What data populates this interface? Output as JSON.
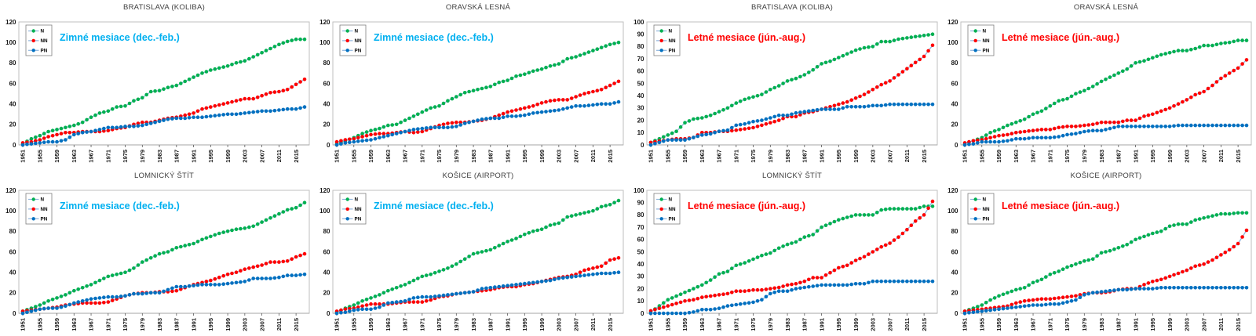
{
  "window": {
    "background": "#ffffff"
  },
  "colors": {
    "series": {
      "N": "#00B050",
      "NN": "#FF0000",
      "PN": "#0070C0"
    },
    "series_connector_line": "#8FB4DC",
    "plot_border": "#BFBFBF",
    "axis_line": "#A6A6A6",
    "tick_mark": "#595959",
    "axis_text": "#1A1A1A",
    "legend_border": "#7F7F7F",
    "legend_text": "#000000",
    "title_text": "#3F3F3F",
    "winter_annotation": "#00B0F0",
    "summer_annotation": "#FF0000"
  },
  "legend": {
    "labels": [
      "N",
      "NN",
      "PN"
    ],
    "position": "top-left"
  },
  "axes": {
    "x_start": 1951,
    "x_end": 2017,
    "x_value_step": 2,
    "x_tick_labels": [
      "1951",
      "1955",
      "1959",
      "1963",
      "1967",
      "1971",
      "1975",
      "1979",
      "1983",
      "1987",
      "1991",
      "1995",
      "1999",
      "2003",
      "2007",
      "2011",
      "2015"
    ],
    "grid": false
  },
  "chart_data": [
    {
      "type": "line",
      "title": "BRATISLAVA (KOLIBA)",
      "annotation": {
        "text": "Zimné mesiace (dec.-feb.)",
        "color": "#00B0F0"
      },
      "ylim": [
        0,
        120
      ],
      "y_tick_step": 20,
      "series": [
        {
          "name": "N",
          "values": [
            1,
            6,
            9,
            13,
            15,
            17,
            19,
            22,
            27,
            31,
            33,
            37,
            38,
            43,
            46,
            52,
            53,
            56,
            58,
            62,
            66,
            70,
            73,
            75,
            77,
            80,
            82,
            86,
            90,
            94,
            98,
            101,
            103,
            103
          ]
        },
        {
          "name": "NN",
          "values": [
            2,
            3,
            5,
            8,
            10,
            12,
            12,
            13,
            13,
            13,
            14,
            16,
            17,
            20,
            22,
            22,
            24,
            26,
            27,
            29,
            31,
            35,
            37,
            39,
            41,
            43,
            45,
            45,
            48,
            51,
            52,
            54,
            59,
            64
          ]
        },
        {
          "name": "PN",
          "values": [
            0,
            1,
            2,
            3,
            3,
            5,
            10,
            12,
            13,
            15,
            17,
            17,
            18,
            18,
            19,
            21,
            23,
            25,
            26,
            26,
            27,
            27,
            28,
            29,
            30,
            30,
            31,
            32,
            33,
            33,
            34,
            35,
            35,
            37
          ]
        }
      ]
    },
    {
      "type": "line",
      "title": "ORAVSKÁ LESNÁ",
      "annotation": {
        "text": "Zimné mesiace (dec.-feb.)",
        "color": "#00B0F0"
      },
      "ylim": [
        0,
        120
      ],
      "y_tick_step": 20,
      "series": [
        {
          "name": "N",
          "values": [
            1,
            4,
            7,
            11,
            14,
            16,
            19,
            20,
            24,
            28,
            32,
            36,
            38,
            43,
            47,
            51,
            53,
            55,
            57,
            61,
            63,
            67,
            69,
            72,
            74,
            77,
            79,
            84,
            86,
            89,
            92,
            95,
            98,
            100
          ]
        },
        {
          "name": "NN",
          "values": [
            3,
            5,
            6,
            8,
            10,
            11,
            11,
            12,
            13,
            12,
            13,
            16,
            19,
            21,
            22,
            22,
            23,
            24,
            26,
            29,
            32,
            34,
            36,
            38,
            41,
            43,
            44,
            44,
            47,
            50,
            52,
            54,
            58,
            62
          ]
        },
        {
          "name": "PN",
          "values": [
            0,
            2,
            3,
            4,
            5,
            7,
            9,
            11,
            13,
            15,
            16,
            17,
            17,
            17,
            18,
            21,
            23,
            25,
            26,
            26,
            28,
            28,
            29,
            31,
            32,
            33,
            34,
            36,
            38,
            38,
            39,
            40,
            40,
            42
          ]
        }
      ]
    },
    {
      "type": "line",
      "title": "BRATISLAVA (KOLIBA)",
      "annotation": {
        "text": "Letné mesiace (jún.-aug.)",
        "color": "#FF0000"
      },
      "ylim": [
        0,
        100
      ],
      "y_tick_step": 10,
      "series": [
        {
          "name": "N",
          "values": [
            2,
            5,
            8,
            11,
            18,
            21,
            22,
            24,
            27,
            30,
            34,
            37,
            39,
            41,
            45,
            48,
            52,
            54,
            57,
            61,
            66,
            68,
            71,
            74,
            77,
            79,
            80,
            84,
            84,
            86,
            87,
            88,
            89,
            90
          ]
        },
        {
          "name": "NN",
          "values": [
            2,
            3,
            4,
            5,
            5,
            6,
            10,
            10,
            11,
            11,
            12,
            13,
            14,
            16,
            18,
            20,
            23,
            23,
            26,
            27,
            29,
            31,
            33,
            35,
            38,
            41,
            45,
            49,
            52,
            57,
            62,
            67,
            72,
            81
          ]
        },
        {
          "name": "PN",
          "values": [
            0,
            2,
            4,
            4,
            4,
            6,
            8,
            9,
            11,
            12,
            16,
            17,
            19,
            20,
            22,
            24,
            24,
            26,
            27,
            28,
            29,
            29,
            29,
            31,
            31,
            31,
            32,
            32,
            33,
            33,
            33,
            33,
            33,
            33
          ]
        }
      ]
    },
    {
      "type": "line",
      "title": "ORAVSKÁ LESNÁ",
      "annotation": {
        "text": "Letné mesiace (jún.-aug.)",
        "color": "#FF0000"
      },
      "ylim": [
        0,
        120
      ],
      "y_tick_step": 20,
      "series": [
        {
          "name": "N",
          "values": [
            1,
            4,
            7,
            12,
            15,
            19,
            22,
            25,
            30,
            33,
            38,
            43,
            45,
            50,
            53,
            57,
            62,
            66,
            70,
            74,
            80,
            82,
            85,
            88,
            90,
            92,
            92,
            94,
            97,
            97,
            99,
            100,
            102,
            102
          ]
        },
        {
          "name": "NN",
          "values": [
            2,
            4,
            5,
            7,
            9,
            10,
            12,
            13,
            14,
            15,
            15,
            17,
            18,
            18,
            19,
            20,
            22,
            22,
            22,
            24,
            24,
            28,
            30,
            33,
            36,
            40,
            44,
            49,
            52,
            58,
            65,
            70,
            75,
            83
          ]
        },
        {
          "name": "PN",
          "values": [
            0,
            1,
            3,
            3,
            3,
            4,
            6,
            6,
            7,
            7,
            7,
            8,
            10,
            11,
            13,
            14,
            14,
            16,
            18,
            18,
            18,
            18,
            18,
            18,
            18,
            19,
            19,
            19,
            19,
            19,
            19,
            19,
            19,
            19
          ]
        }
      ]
    },
    {
      "type": "line",
      "title": "LOMNICKÝ ŠTÍT",
      "annotation": {
        "text": "Zimné mesiace (dec.-feb.)",
        "color": "#00B0F0"
      },
      "ylim": [
        0,
        120
      ],
      "y_tick_step": 20,
      "series": [
        {
          "name": "N",
          "values": [
            2,
            5,
            8,
            12,
            15,
            18,
            22,
            25,
            28,
            32,
            36,
            38,
            40,
            44,
            50,
            54,
            58,
            60,
            64,
            66,
            68,
            72,
            75,
            78,
            80,
            82,
            83,
            85,
            89,
            93,
            97,
            101,
            103,
            108
          ]
        },
        {
          "name": "NN",
          "values": [
            2,
            3,
            4,
            5,
            6,
            8,
            9,
            10,
            10,
            10,
            11,
            14,
            17,
            19,
            20,
            20,
            21,
            21,
            22,
            25,
            28,
            30,
            32,
            35,
            38,
            40,
            43,
            45,
            47,
            50,
            50,
            51,
            55,
            58
          ]
        },
        {
          "name": "PN",
          "values": [
            0,
            2,
            4,
            5,
            5,
            7,
            10,
            12,
            14,
            15,
            16,
            16,
            17,
            19,
            19,
            20,
            20,
            23,
            26,
            26,
            27,
            28,
            28,
            28,
            29,
            30,
            31,
            34,
            34,
            34,
            35,
            37,
            37,
            38
          ]
        }
      ]
    },
    {
      "type": "line",
      "title": "KOŠICE (AIRPORT)",
      "annotation": {
        "text": "Zimné mesiace (dec.-feb.)",
        "color": "#00B0F0"
      },
      "ylim": [
        0,
        120
      ],
      "y_tick_step": 20,
      "series": [
        {
          "name": "N",
          "values": [
            1,
            5,
            8,
            12,
            15,
            18,
            22,
            25,
            28,
            32,
            36,
            38,
            41,
            44,
            48,
            53,
            58,
            60,
            62,
            66,
            70,
            73,
            77,
            80,
            82,
            86,
            88,
            94,
            96,
            98,
            100,
            104,
            106,
            110
          ]
        },
        {
          "name": "NN",
          "values": [
            2,
            4,
            5,
            7,
            9,
            9,
            9,
            10,
            11,
            11,
            11,
            13,
            16,
            17,
            19,
            20,
            21,
            22,
            23,
            25,
            26,
            26,
            28,
            29,
            31,
            33,
            35,
            36,
            38,
            42,
            44,
            46,
            52,
            54
          ]
        },
        {
          "name": "PN",
          "values": [
            0,
            1,
            3,
            4,
            4,
            6,
            10,
            11,
            12,
            15,
            16,
            16,
            17,
            18,
            19,
            20,
            21,
            24,
            25,
            26,
            27,
            28,
            29,
            30,
            31,
            32,
            34,
            35,
            36,
            37,
            38,
            39,
            39,
            40
          ]
        }
      ]
    },
    {
      "type": "line",
      "title": "LOMNICKÝ ŠTÍT",
      "annotation": {
        "text": "Letné mesiace (jún.-aug.)",
        "color": "#FF0000"
      },
      "ylim": [
        0,
        100
      ],
      "y_tick_step": 10,
      "series": [
        {
          "name": "N",
          "values": [
            1,
            6,
            11,
            14,
            17,
            20,
            23,
            27,
            32,
            34,
            39,
            41,
            44,
            47,
            49,
            53,
            56,
            58,
            62,
            64,
            70,
            73,
            76,
            78,
            80,
            80,
            80,
            84,
            85,
            85,
            85,
            85,
            87,
            87
          ]
        },
        {
          "name": "NN",
          "values": [
            2,
            4,
            6,
            8,
            10,
            11,
            13,
            14,
            15,
            16,
            18,
            18,
            19,
            19,
            20,
            21,
            23,
            24,
            26,
            29,
            29,
            33,
            37,
            39,
            43,
            46,
            50,
            54,
            57,
            62,
            68,
            75,
            80,
            91
          ]
        },
        {
          "name": "PN",
          "values": [
            0,
            0,
            0,
            0,
            0,
            1,
            3,
            3,
            4,
            6,
            7,
            8,
            9,
            11,
            16,
            18,
            18,
            20,
            21,
            22,
            23,
            23,
            23,
            23,
            24,
            24,
            26,
            26,
            26,
            26,
            26,
            26,
            26,
            26
          ]
        }
      ]
    },
    {
      "type": "line",
      "title": "KOŠICE (AIRPORT)",
      "annotation": {
        "text": "Letné mesiace (jún.-aug.)",
        "color": "#FF0000"
      },
      "ylim": [
        0,
        120
      ],
      "y_tick_step": 20,
      "series": [
        {
          "name": "N",
          "values": [
            2,
            5,
            8,
            13,
            17,
            20,
            23,
            25,
            30,
            33,
            38,
            41,
            45,
            48,
            51,
            53,
            59,
            61,
            64,
            67,
            72,
            75,
            78,
            80,
            85,
            87,
            87,
            91,
            93,
            95,
            97,
            97,
            98,
            98
          ]
        },
        {
          "name": "NN",
          "values": [
            2,
            3,
            4,
            5,
            6,
            7,
            10,
            12,
            13,
            14,
            14,
            15,
            16,
            17,
            19,
            20,
            20,
            21,
            23,
            24,
            24,
            28,
            31,
            33,
            36,
            39,
            42,
            46,
            48,
            52,
            57,
            62,
            68,
            81
          ]
        },
        {
          "name": "PN",
          "values": [
            0,
            1,
            2,
            3,
            4,
            5,
            6,
            7,
            8,
            8,
            9,
            9,
            11,
            13,
            18,
            20,
            21,
            22,
            23,
            23,
            24,
            24,
            24,
            25,
            25,
            25,
            25,
            25,
            25,
            25,
            25,
            25,
            25,
            25
          ]
        }
      ]
    }
  ]
}
